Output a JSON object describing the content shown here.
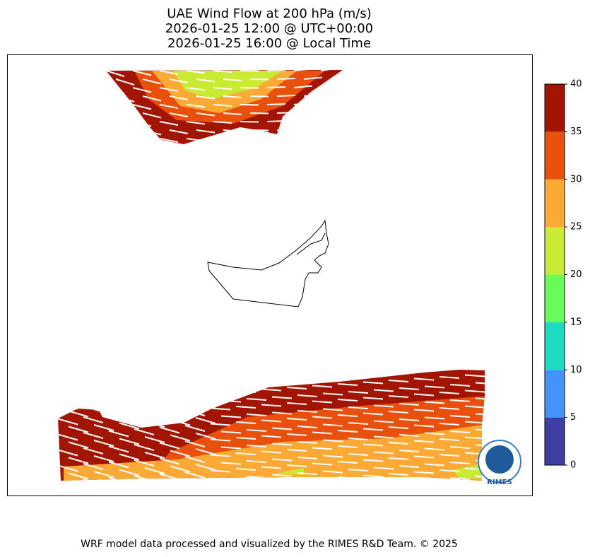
{
  "title": [
    "UAE Wind Flow at 200 hPa (m/s)",
    "2026-01-25 12:00 @ UTC+00:00",
    "2026-01-25 16:00 @ Local Time"
  ],
  "colorbar": {
    "ticks": [
      0,
      5,
      10,
      15,
      20,
      25,
      30,
      35,
      40
    ],
    "colors": [
      "#3e3fa3",
      "#4493fb",
      "#1ddbc0",
      "#67fc5a",
      "#c9eb34",
      "#fca936",
      "#e94f0d",
      "#a31503"
    ]
  },
  "logo": "RIMES",
  "footer": "WRF model data processed and visualized by the RIMES R&D Team. © 2025"
}
